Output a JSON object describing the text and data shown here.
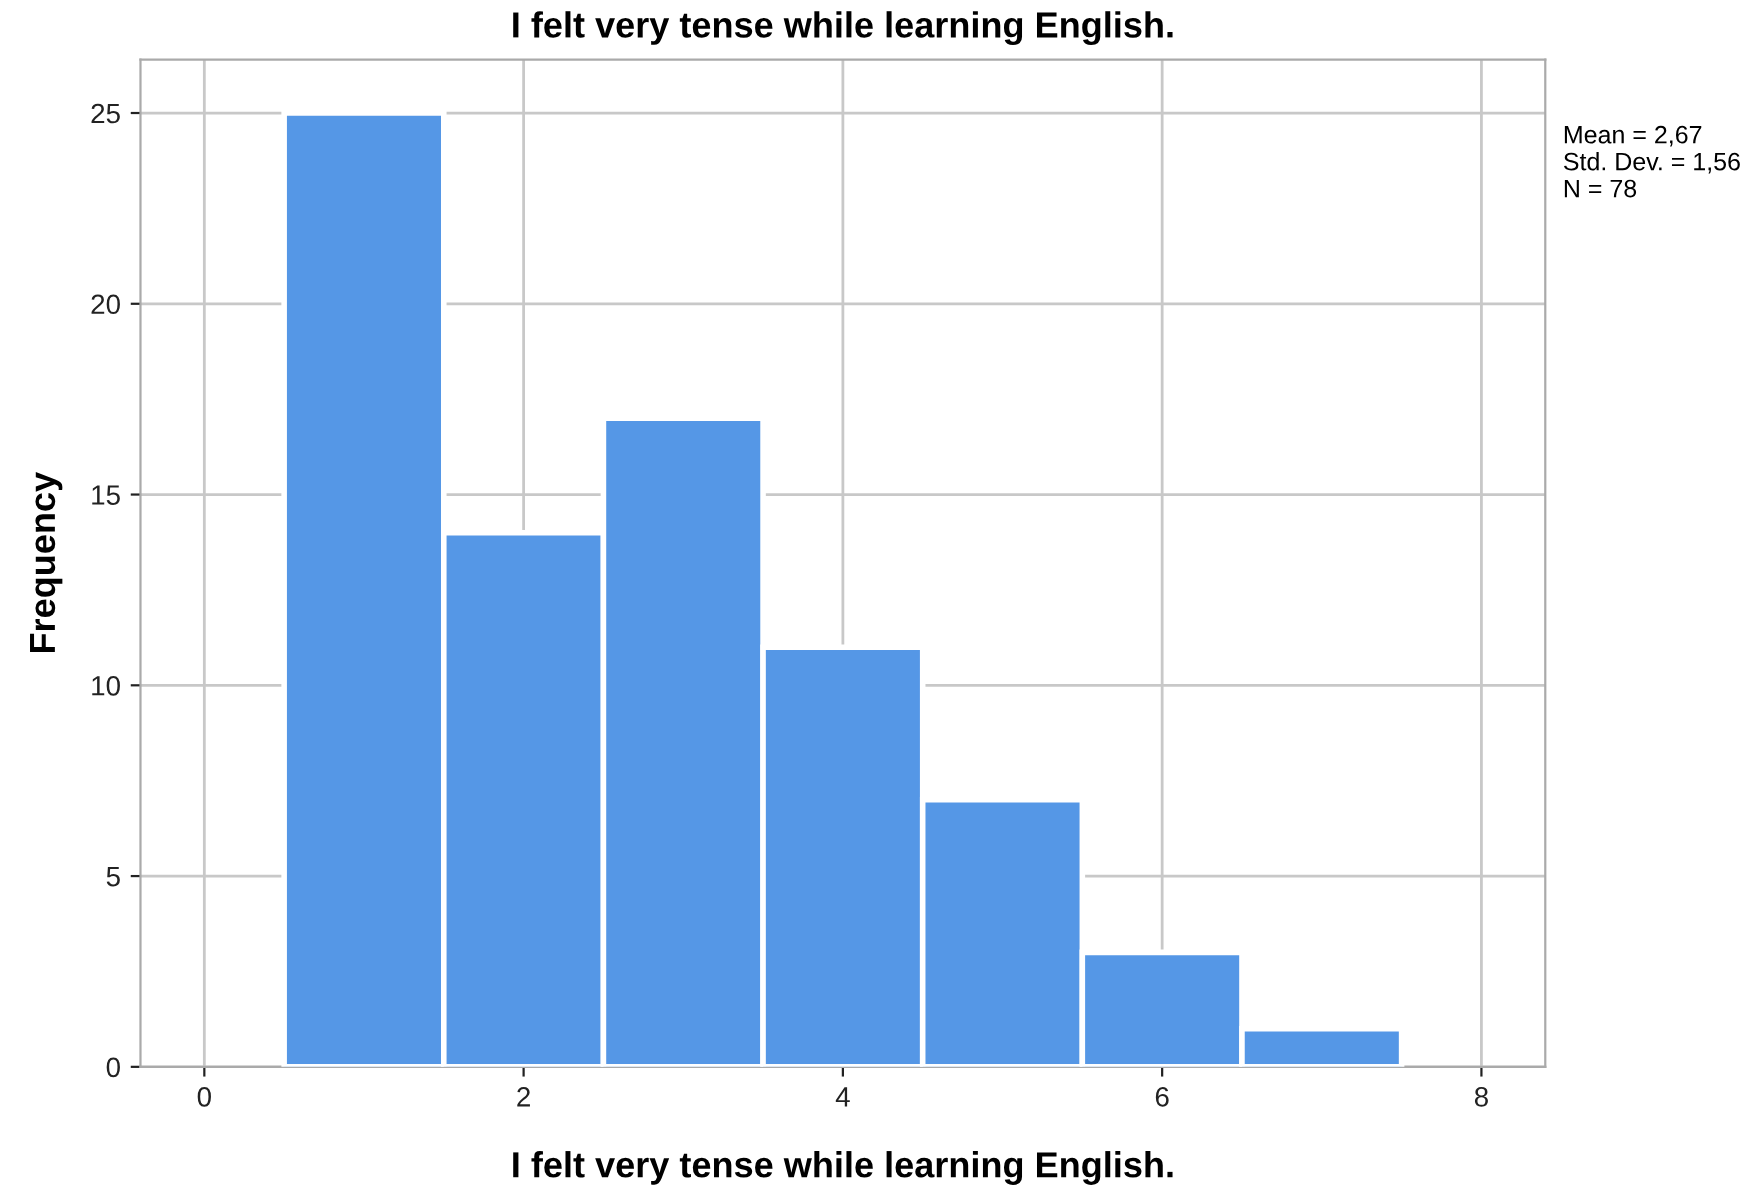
{
  "chart_data": {
    "type": "histogram",
    "title": "I felt very tense while learning English.",
    "xlabel": "I felt very tense while learning English.",
    "ylabel": "Frequency",
    "bins": [
      0.5,
      1.5,
      2.5,
      3.5,
      4.5,
      5.5,
      6.5,
      7.5
    ],
    "values": [
      25,
      14,
      17,
      11,
      7,
      3,
      1
    ],
    "color": "#5597e6",
    "xlim": [
      -0.4,
      8.4
    ],
    "xticks": [
      0,
      2,
      4,
      6,
      8
    ],
    "ylim": [
      0,
      26.4
    ],
    "yticks": [
      0,
      5,
      10,
      15,
      20,
      25
    ],
    "grid": true,
    "annotations": [
      "Mean = 2,67\nStd. Dev. = 1,56\nN = 78"
    ]
  }
}
